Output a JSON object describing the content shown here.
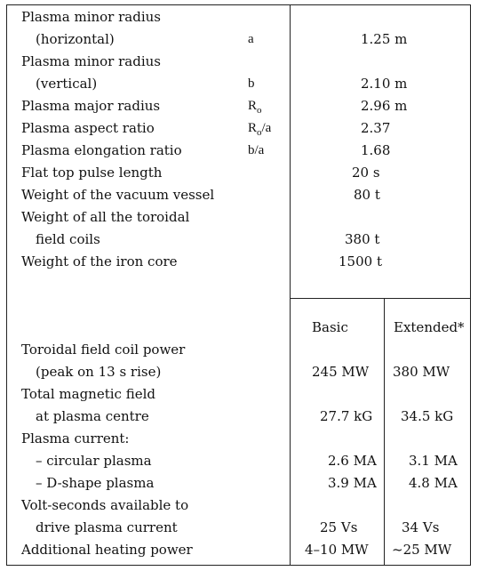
{
  "upper_rows": [
    {
      "label": "Plasma minor radius",
      "symbol": "",
      "value": ""
    },
    {
      "label": "(horizontal)",
      "symbol": "a",
      "value": "1.25 m"
    },
    {
      "label": "Plasma minor radius",
      "symbol": "",
      "value": ""
    },
    {
      "label": "(vertical)",
      "symbol": "b",
      "value": "2.10 m"
    },
    {
      "label": "Plasma major radius",
      "symbol_base": "R",
      "symbol_sub": "o",
      "symbol_tail": "",
      "value": "2.96 m"
    },
    {
      "label": "Plasma aspect ratio",
      "symbol_base": "R",
      "symbol_sub": "o",
      "symbol_tail": "/a",
      "value": "2.37"
    },
    {
      "label": "Plasma elongation ratio",
      "symbol": "b/a",
      "value": "1.68"
    },
    {
      "label": "Flat top pulse length",
      "symbol": "",
      "value": "20 s"
    },
    {
      "label": "Weight of the vacuum vessel",
      "symbol": "",
      "value": "80 t"
    },
    {
      "label": "Weight of all the toroidal",
      "symbol": "",
      "value": ""
    },
    {
      "label": "field coils",
      "symbol": "",
      "value": "380 t"
    },
    {
      "label": "Weight of the iron core",
      "symbol": "",
      "value": "1500 t"
    }
  ],
  "lower_header": {
    "basic": "Basic",
    "extended": "Extended*"
  },
  "lower_rows": [
    {
      "label": "Toroidal field coil power",
      "basic": "",
      "extended": ""
    },
    {
      "label": "(peak on 13 s rise)",
      "basic": "245 MW",
      "extended": "380 MW"
    },
    {
      "label": "Total magnetic field",
      "basic": "",
      "extended": ""
    },
    {
      "label": "at plasma centre",
      "basic": "27.7 kG",
      "extended": "34.5 kG"
    },
    {
      "label": "Plasma current:",
      "basic": "",
      "extended": ""
    },
    {
      "label": "– circular plasma",
      "basic": "2.6 MA",
      "extended": "3.1 MA"
    },
    {
      "label": "– D-shape plasma",
      "basic": "3.9 MA",
      "extended": "4.8 MA"
    },
    {
      "label": "Volt-seconds available to",
      "basic": "",
      "extended": ""
    },
    {
      "label": "drive plasma current",
      "basic": "25 Vs",
      "extended": "34 Vs"
    },
    {
      "label": "Additional heating power",
      "basic": "4–10 MW",
      "extended": "~25 MW"
    }
  ]
}
